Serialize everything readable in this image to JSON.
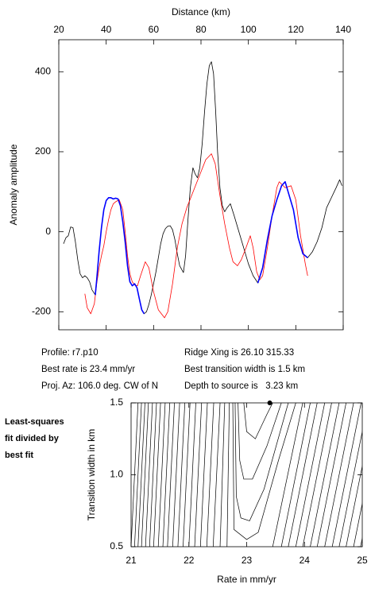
{
  "chart_data": [
    {
      "type": "line",
      "xlabel": "Distance (km)",
      "ylabel": "Anomaly amplitude",
      "xlim": [
        20,
        140
      ],
      "xticks": [
        20,
        40,
        60,
        80,
        100,
        120,
        140
      ],
      "ylim": [
        -245,
        480
      ],
      "yticks": [
        -200,
        0,
        200,
        400
      ],
      "series": [
        {
          "color": "#000000",
          "x": [
            22,
            23,
            24,
            25,
            26,
            27,
            28,
            29,
            30,
            31,
            32,
            33,
            34,
            35.4,
            36,
            37,
            38,
            39,
            40,
            41,
            42,
            43,
            44,
            45,
            46,
            47,
            48,
            49,
            50,
            51,
            52,
            53,
            54,
            55,
            56,
            57,
            58,
            59,
            60,
            61,
            62,
            63,
            64,
            65,
            66,
            67,
            68,
            69,
            70,
            71,
            72.6,
            73.5,
            74.5,
            75.5,
            76.6,
            77.5,
            78.5,
            79.5,
            80.5,
            81.5,
            82.5,
            83.5,
            84.4,
            85.3,
            86.2,
            87,
            88,
            89,
            90,
            91,
            92.4,
            94,
            96,
            98,
            100,
            102,
            104,
            106,
            108,
            110,
            112,
            114,
            115.5,
            117,
            119,
            121,
            123,
            125,
            127,
            129,
            131,
            133,
            135,
            137,
            138.5,
            139.5
          ],
          "values": [
            -30,
            -15,
            -10,
            12,
            10,
            -25,
            -70,
            -105,
            -115,
            -110,
            -115,
            -125,
            -145,
            -158,
            -120,
            -50,
            10,
            55,
            78,
            85,
            85,
            82,
            84,
            82,
            65,
            25,
            -25,
            -85,
            -125,
            -135,
            -130,
            -140,
            -168,
            -195,
            -205,
            -200,
            -182,
            -158,
            -130,
            -100,
            -65,
            -30,
            -5,
            8,
            14,
            15,
            5,
            -20,
            -55,
            -85,
            -102,
            -60,
            30,
            110,
            160,
            145,
            135,
            160,
            220,
            300,
            370,
            415,
            425,
            395,
            300,
            200,
            110,
            65,
            50,
            60,
            70,
            40,
            0,
            -40,
            -80,
            -110,
            -128,
            -90,
            -20,
            40,
            80,
            115,
            125,
            95,
            55,
            -15,
            -55,
            -65,
            -50,
            -25,
            10,
            60,
            85,
            110,
            130,
            115
          ]
        },
        {
          "color": "#ff0000",
          "x": [
            31,
            32,
            33.5,
            35,
            36,
            37,
            38,
            39,
            40,
            41,
            42,
            43,
            44,
            45.5,
            47,
            48,
            49,
            50,
            51,
            52,
            53.2,
            54.5,
            56.5,
            58,
            60,
            62,
            64.6,
            66,
            68,
            70,
            72,
            74,
            76,
            78,
            80,
            82,
            84.4,
            86,
            88,
            90,
            92,
            93.5,
            95.4,
            97,
            99,
            100.8,
            102,
            103.5,
            104.8,
            106,
            108,
            110,
            112,
            113,
            115.5,
            118,
            120,
            122,
            124,
            125
          ],
          "values": [
            -155,
            -190,
            -205,
            -180,
            -130,
            -90,
            -60,
            -35,
            0,
            30,
            55,
            70,
            75,
            80,
            55,
            0,
            -60,
            -105,
            -125,
            -133,
            -135,
            -110,
            -75,
            -90,
            -150,
            -195,
            -215,
            -200,
            -130,
            -40,
            20,
            60,
            90,
            120,
            150,
            180,
            195,
            170,
            90,
            20,
            -40,
            -75,
            -85,
            -70,
            -40,
            -10,
            -40,
            -100,
            -120,
            -110,
            -40,
            40,
            110,
            125,
            110,
            115,
            80,
            -10,
            -80,
            -110
          ]
        },
        {
          "color": "#0000ff",
          "x": [
            35.4,
            36,
            37,
            38,
            39,
            40,
            41,
            42,
            43,
            44,
            45,
            46,
            47,
            48,
            49,
            50,
            51,
            52,
            53,
            54,
            55,
            56
          ],
          "values": [
            -158,
            -120,
            -50,
            10,
            55,
            78,
            85,
            85,
            82,
            84,
            82,
            65,
            25,
            -25,
            -85,
            -125,
            -135,
            -130,
            -140,
            -168,
            -195,
            -205
          ]
        },
        {
          "color": "#0000ff",
          "x": [
            104,
            106,
            108,
            110,
            112,
            114,
            115.5,
            117,
            119,
            121,
            123,
            125
          ],
          "values": [
            -128,
            -90,
            -20,
            40,
            80,
            115,
            125,
            95,
            55,
            -15,
            -55,
            -65
          ]
        }
      ]
    },
    {
      "type": "contour",
      "xlabel": "Rate in mm/yr",
      "ylabel": "Transition width in km",
      "xlim": [
        21,
        25
      ],
      "xticks": [
        21,
        22,
        23,
        24,
        25
      ],
      "ylim": [
        0.5,
        1.5
      ],
      "yticks": [
        0.5,
        {
          "value": 1,
          "label": "1.0"
        },
        1.5
      ],
      "color": "#000000",
      "contours": [
        {
          "x": [
            21.0,
            21.12
          ],
          "y": [
            0.5,
            1.5
          ]
        },
        {
          "x": [
            21.06,
            21.18
          ],
          "y": [
            0.5,
            1.5
          ]
        },
        {
          "x": [
            21.12,
            21.24
          ],
          "y": [
            0.5,
            1.5
          ]
        },
        {
          "x": [
            21.18,
            21.3
          ],
          "y": [
            0.5,
            1.5
          ]
        },
        {
          "x": [
            21.25,
            21.37
          ],
          "y": [
            0.5,
            1.5
          ]
        },
        {
          "x": [
            21.32,
            21.44
          ],
          "y": [
            0.5,
            1.5
          ]
        },
        {
          "x": [
            21.39,
            21.51
          ],
          "y": [
            0.5,
            1.5
          ]
        },
        {
          "x": [
            21.47,
            21.59
          ],
          "y": [
            0.5,
            1.5
          ]
        },
        {
          "x": [
            21.55,
            21.67
          ],
          "y": [
            0.5,
            1.5
          ]
        },
        {
          "x": [
            21.63,
            21.75
          ],
          "y": [
            0.5,
            1.5
          ]
        },
        {
          "x": [
            21.72,
            21.84
          ],
          "y": [
            0.5,
            1.5
          ]
        },
        {
          "x": [
            21.81,
            21.93
          ],
          "y": [
            0.5,
            1.5
          ]
        },
        {
          "x": [
            21.9,
            22.02
          ],
          "y": [
            0.5,
            1.5
          ]
        },
        {
          "x": [
            22.0,
            22.12
          ],
          "y": [
            0.5,
            1.5
          ]
        },
        {
          "x": [
            22.1,
            22.22
          ],
          "y": [
            0.5,
            1.5
          ]
        },
        {
          "x": [
            22.2,
            22.32
          ],
          "y": [
            0.5,
            1.5
          ]
        },
        {
          "x": [
            22.31,
            22.43
          ],
          "y": [
            0.5,
            1.5
          ]
        },
        {
          "x": [
            22.42,
            22.54
          ],
          "y": [
            0.5,
            1.5
          ]
        },
        {
          "x": [
            22.54,
            22.62
          ],
          "y": [
            0.5,
            1.5
          ]
        },
        {
          "x": [
            22.66,
            22.7
          ],
          "y": [
            0.5,
            1.5
          ]
        },
        {
          "x": [
            22.95,
            23.0,
            23.15,
            23.35,
            23.45
          ],
          "y": [
            1.5,
            1.3,
            1.25,
            1.42,
            1.5
          ]
        },
        {
          "x": [
            22.85,
            22.88,
            22.95,
            23.1,
            23.35,
            23.6
          ],
          "y": [
            1.5,
            1.1,
            0.97,
            0.97,
            1.2,
            1.5
          ]
        },
        {
          "x": [
            22.8,
            22.82,
            22.9,
            23.05,
            23.3,
            23.72
          ],
          "y": [
            1.5,
            0.85,
            0.7,
            0.68,
            0.9,
            1.5
          ]
        },
        {
          "x": [
            22.76,
            22.78,
            23.0,
            23.2,
            23.55,
            23.85
          ],
          "y": [
            1.5,
            0.62,
            0.55,
            0.6,
            1.1,
            1.5
          ]
        },
        {
          "x": [
            23.45,
            23.97
          ],
          "y": [
            0.5,
            1.5
          ]
        },
        {
          "x": [
            23.6,
            24.1
          ],
          "y": [
            0.5,
            1.5
          ]
        },
        {
          "x": [
            23.72,
            24.22
          ],
          "y": [
            0.5,
            1.5
          ]
        },
        {
          "x": [
            23.85,
            24.35
          ],
          "y": [
            0.5,
            1.5
          ]
        },
        {
          "x": [
            23.97,
            24.47
          ],
          "y": [
            0.5,
            1.5
          ]
        },
        {
          "x": [
            24.1,
            24.6
          ],
          "y": [
            0.5,
            1.5
          ]
        },
        {
          "x": [
            24.22,
            24.72
          ],
          "y": [
            0.5,
            1.5
          ]
        },
        {
          "x": [
            24.35,
            24.85
          ],
          "y": [
            0.5,
            1.5
          ]
        },
        {
          "x": [
            24.48,
            24.98
          ],
          "y": [
            0.5,
            1.5
          ]
        },
        {
          "x": [
            24.6,
            25.1
          ],
          "y": [
            0.5,
            1.5
          ]
        },
        {
          "x": [
            24.72,
            25.22
          ],
          "y": [
            0.5,
            1.5
          ]
        },
        {
          "x": [
            24.85,
            25.35
          ],
          "y": [
            0.5,
            1.5
          ]
        },
        {
          "x": [
            24.97,
            25.47
          ],
          "y": [
            0.5,
            1.5
          ]
        }
      ],
      "best_fit": {
        "x": 23.4,
        "y": 1.5
      }
    }
  ],
  "profile_info": {
    "left": [
      "Profile: r7.p10",
      "Best rate is 23.4 mm/yr",
      "Proj. Az: 106.0 deg. CW of N"
    ],
    "right": [
      "Ridge Xing is 26.10 315.33",
      "Best transition width is 1.5 km",
      "Depth to source is   3.23 km"
    ]
  },
  "side_note": [
    "Least-squares",
    "fit divided by",
    "best fit"
  ]
}
